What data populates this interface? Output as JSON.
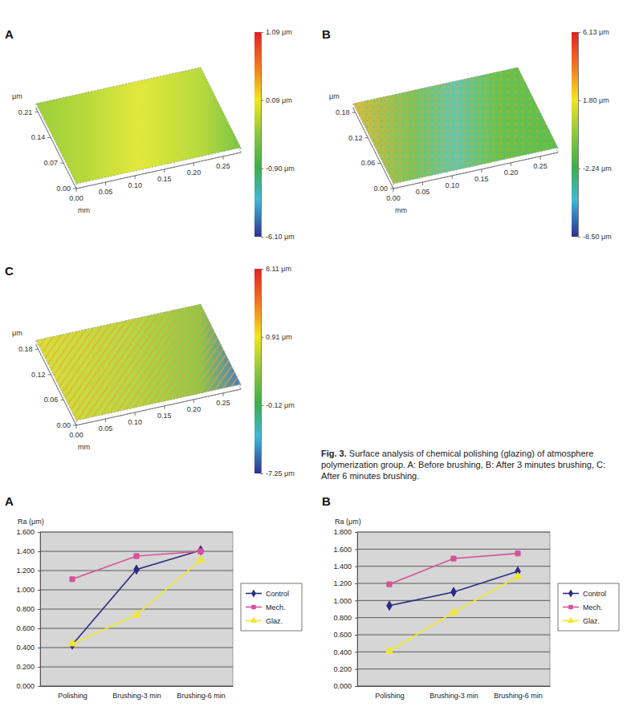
{
  "chart_data": [
    {
      "type": "surface",
      "panel": "A",
      "xlabel": "mm",
      "ylabel": "μm",
      "xlim": [
        0,
        0.28
      ],
      "ylim": [
        0,
        0.22
      ],
      "xticks": [
        {
          "value": 0,
          "label": "0.00"
        },
        {
          "value": 0.05,
          "label": "0.05"
        },
        {
          "value": 0.1,
          "label": "0.10"
        },
        {
          "value": 0.15,
          "label": "0.15"
        },
        {
          "value": 0.2,
          "label": "0.20"
        },
        {
          "value": 0.25,
          "label": "0.25"
        }
      ],
      "yticks": [
        {
          "value": 0,
          "label": "0.00"
        },
        {
          "value": 0.07,
          "label": "0.07"
        },
        {
          "value": 0.14,
          "label": "0.14"
        },
        {
          "value": 0.21,
          "label": "0.21"
        }
      ],
      "colorbar": {
        "range": [
          -6.1,
          1.09
        ],
        "ticks": [
          {
            "value": 1.09,
            "label": "1.09 μm"
          },
          {
            "value": 0.09,
            "label": "0.09 μm"
          },
          {
            "value": -0.9,
            "label": "-0.90 μm"
          },
          {
            "value": -6.1,
            "label": "-6.10 μm"
          }
        ]
      }
    },
    {
      "type": "surface",
      "panel": "B",
      "xlabel": "mm",
      "ylabel": "μm",
      "xlim": [
        0,
        0.28
      ],
      "ylim": [
        0,
        0.19
      ],
      "xticks": [
        {
          "value": 0,
          "label": "0.00"
        },
        {
          "value": 0.05,
          "label": "0.05"
        },
        {
          "value": 0.1,
          "label": "0.10"
        },
        {
          "value": 0.15,
          "label": "0.15"
        },
        {
          "value": 0.2,
          "label": "0.20"
        },
        {
          "value": 0.25,
          "label": "0.25"
        }
      ],
      "yticks": [
        {
          "value": 0,
          "label": "0.00"
        },
        {
          "value": 0.06,
          "label": "0.06"
        },
        {
          "value": 0.12,
          "label": "0.12"
        },
        {
          "value": 0.18,
          "label": "0.18"
        }
      ],
      "colorbar": {
        "range": [
          -8.5,
          6.13
        ],
        "ticks": [
          {
            "value": 6.13,
            "label": "6.13 μm"
          },
          {
            "value": 1.8,
            "label": "1.80 μm"
          },
          {
            "value": -2.24,
            "label": "-2.24 μm"
          },
          {
            "value": -8.5,
            "label": "-8.50 μm"
          }
        ]
      }
    },
    {
      "type": "surface",
      "panel": "C",
      "xlabel": "mm",
      "ylabel": "μm",
      "xlim": [
        0,
        0.28
      ],
      "ylim": [
        0,
        0.19
      ],
      "xticks": [
        {
          "value": 0,
          "label": "0.00"
        },
        {
          "value": 0.05,
          "label": "0.05"
        },
        {
          "value": 0.1,
          "label": "0.10"
        },
        {
          "value": 0.15,
          "label": "0.15"
        },
        {
          "value": 0.2,
          "label": "0.20"
        },
        {
          "value": 0.25,
          "label": "0.25"
        }
      ],
      "yticks": [
        {
          "value": 0,
          "label": "0.00"
        },
        {
          "value": 0.06,
          "label": "0.06"
        },
        {
          "value": 0.12,
          "label": "0.12"
        },
        {
          "value": 0.18,
          "label": "0.18"
        }
      ],
      "colorbar": {
        "range": [
          -7.25,
          8.11
        ],
        "ticks": [
          {
            "value": 8.11,
            "label": "8.11 μm"
          },
          {
            "value": 0.91,
            "label": "0.91 μm"
          },
          {
            "value": -0.12,
            "label": "-0.12 μm"
          },
          {
            "value": -7.25,
            "label": "-7.25 μm"
          }
        ]
      }
    },
    {
      "type": "line",
      "panel": "A",
      "ylabel": "Ra (μm)",
      "categories": [
        "Polishing",
        "Brushing-3 min",
        "Brushing-6 min"
      ],
      "ylim": [
        0,
        1.6
      ],
      "yticks": [
        {
          "value": 0,
          "label": "0.000"
        },
        {
          "value": 0.2,
          "label": "0.200"
        },
        {
          "value": 0.4,
          "label": "0.400"
        },
        {
          "value": 0.6,
          "label": "0.600"
        },
        {
          "value": 0.8,
          "label": "0.800"
        },
        {
          "value": 1.0,
          "label": "1.000"
        },
        {
          "value": 1.2,
          "label": "1.200"
        },
        {
          "value": 1.4,
          "label": "1.400"
        },
        {
          "value": 1.6,
          "label": "1.600"
        }
      ],
      "grid": true,
      "legend": "right",
      "series": [
        {
          "name": "Control",
          "color": "#2b2b85",
          "marker": "diamond",
          "values": [
            0.43,
            1.21,
            1.41
          ]
        },
        {
          "name": "Mech.",
          "color": "#d6529a",
          "marker": "square",
          "values": [
            1.11,
            1.35,
            1.4
          ]
        },
        {
          "name": "Glaz.",
          "color": "#f2e829",
          "marker": "triangle",
          "values": [
            0.44,
            0.74,
            1.31
          ]
        }
      ]
    },
    {
      "type": "line",
      "panel": "B",
      "ylabel": "Ra (μm)",
      "categories": [
        "Polishing",
        "Brushing-3 min",
        "Brushing-6 min"
      ],
      "ylim": [
        0,
        1.8
      ],
      "yticks": [
        {
          "value": 0,
          "label": "0.000"
        },
        {
          "value": 0.2,
          "label": "0.200"
        },
        {
          "value": 0.4,
          "label": "0.400"
        },
        {
          "value": 0.6,
          "label": "0.600"
        },
        {
          "value": 0.8,
          "label": "0.800"
        },
        {
          "value": 1.0,
          "label": "1.000"
        },
        {
          "value": 1.2,
          "label": "1.200"
        },
        {
          "value": 1.4,
          "label": "1.400"
        },
        {
          "value": 1.6,
          "label": "1.600"
        },
        {
          "value": 1.8,
          "label": "1.800"
        }
      ],
      "grid": true,
      "legend": "right",
      "series": [
        {
          "name": "Control",
          "color": "#2b2b85",
          "marker": "diamond",
          "values": [
            0.94,
            1.1,
            1.34
          ]
        },
        {
          "name": "Mech.",
          "color": "#d6529a",
          "marker": "square",
          "values": [
            1.19,
            1.49,
            1.55
          ]
        },
        {
          "name": "Glaz.",
          "color": "#f2e829",
          "marker": "triangle",
          "values": [
            0.41,
            0.86,
            1.28
          ]
        }
      ]
    }
  ],
  "caption": {
    "label": "Fig. 3.",
    "text": "Surface analysis of chemical polishing (glazing) of atmosphere polymerization group. A: Before brushing, B: After 3 minutes brushing, C: After 6 minutes brushing."
  }
}
